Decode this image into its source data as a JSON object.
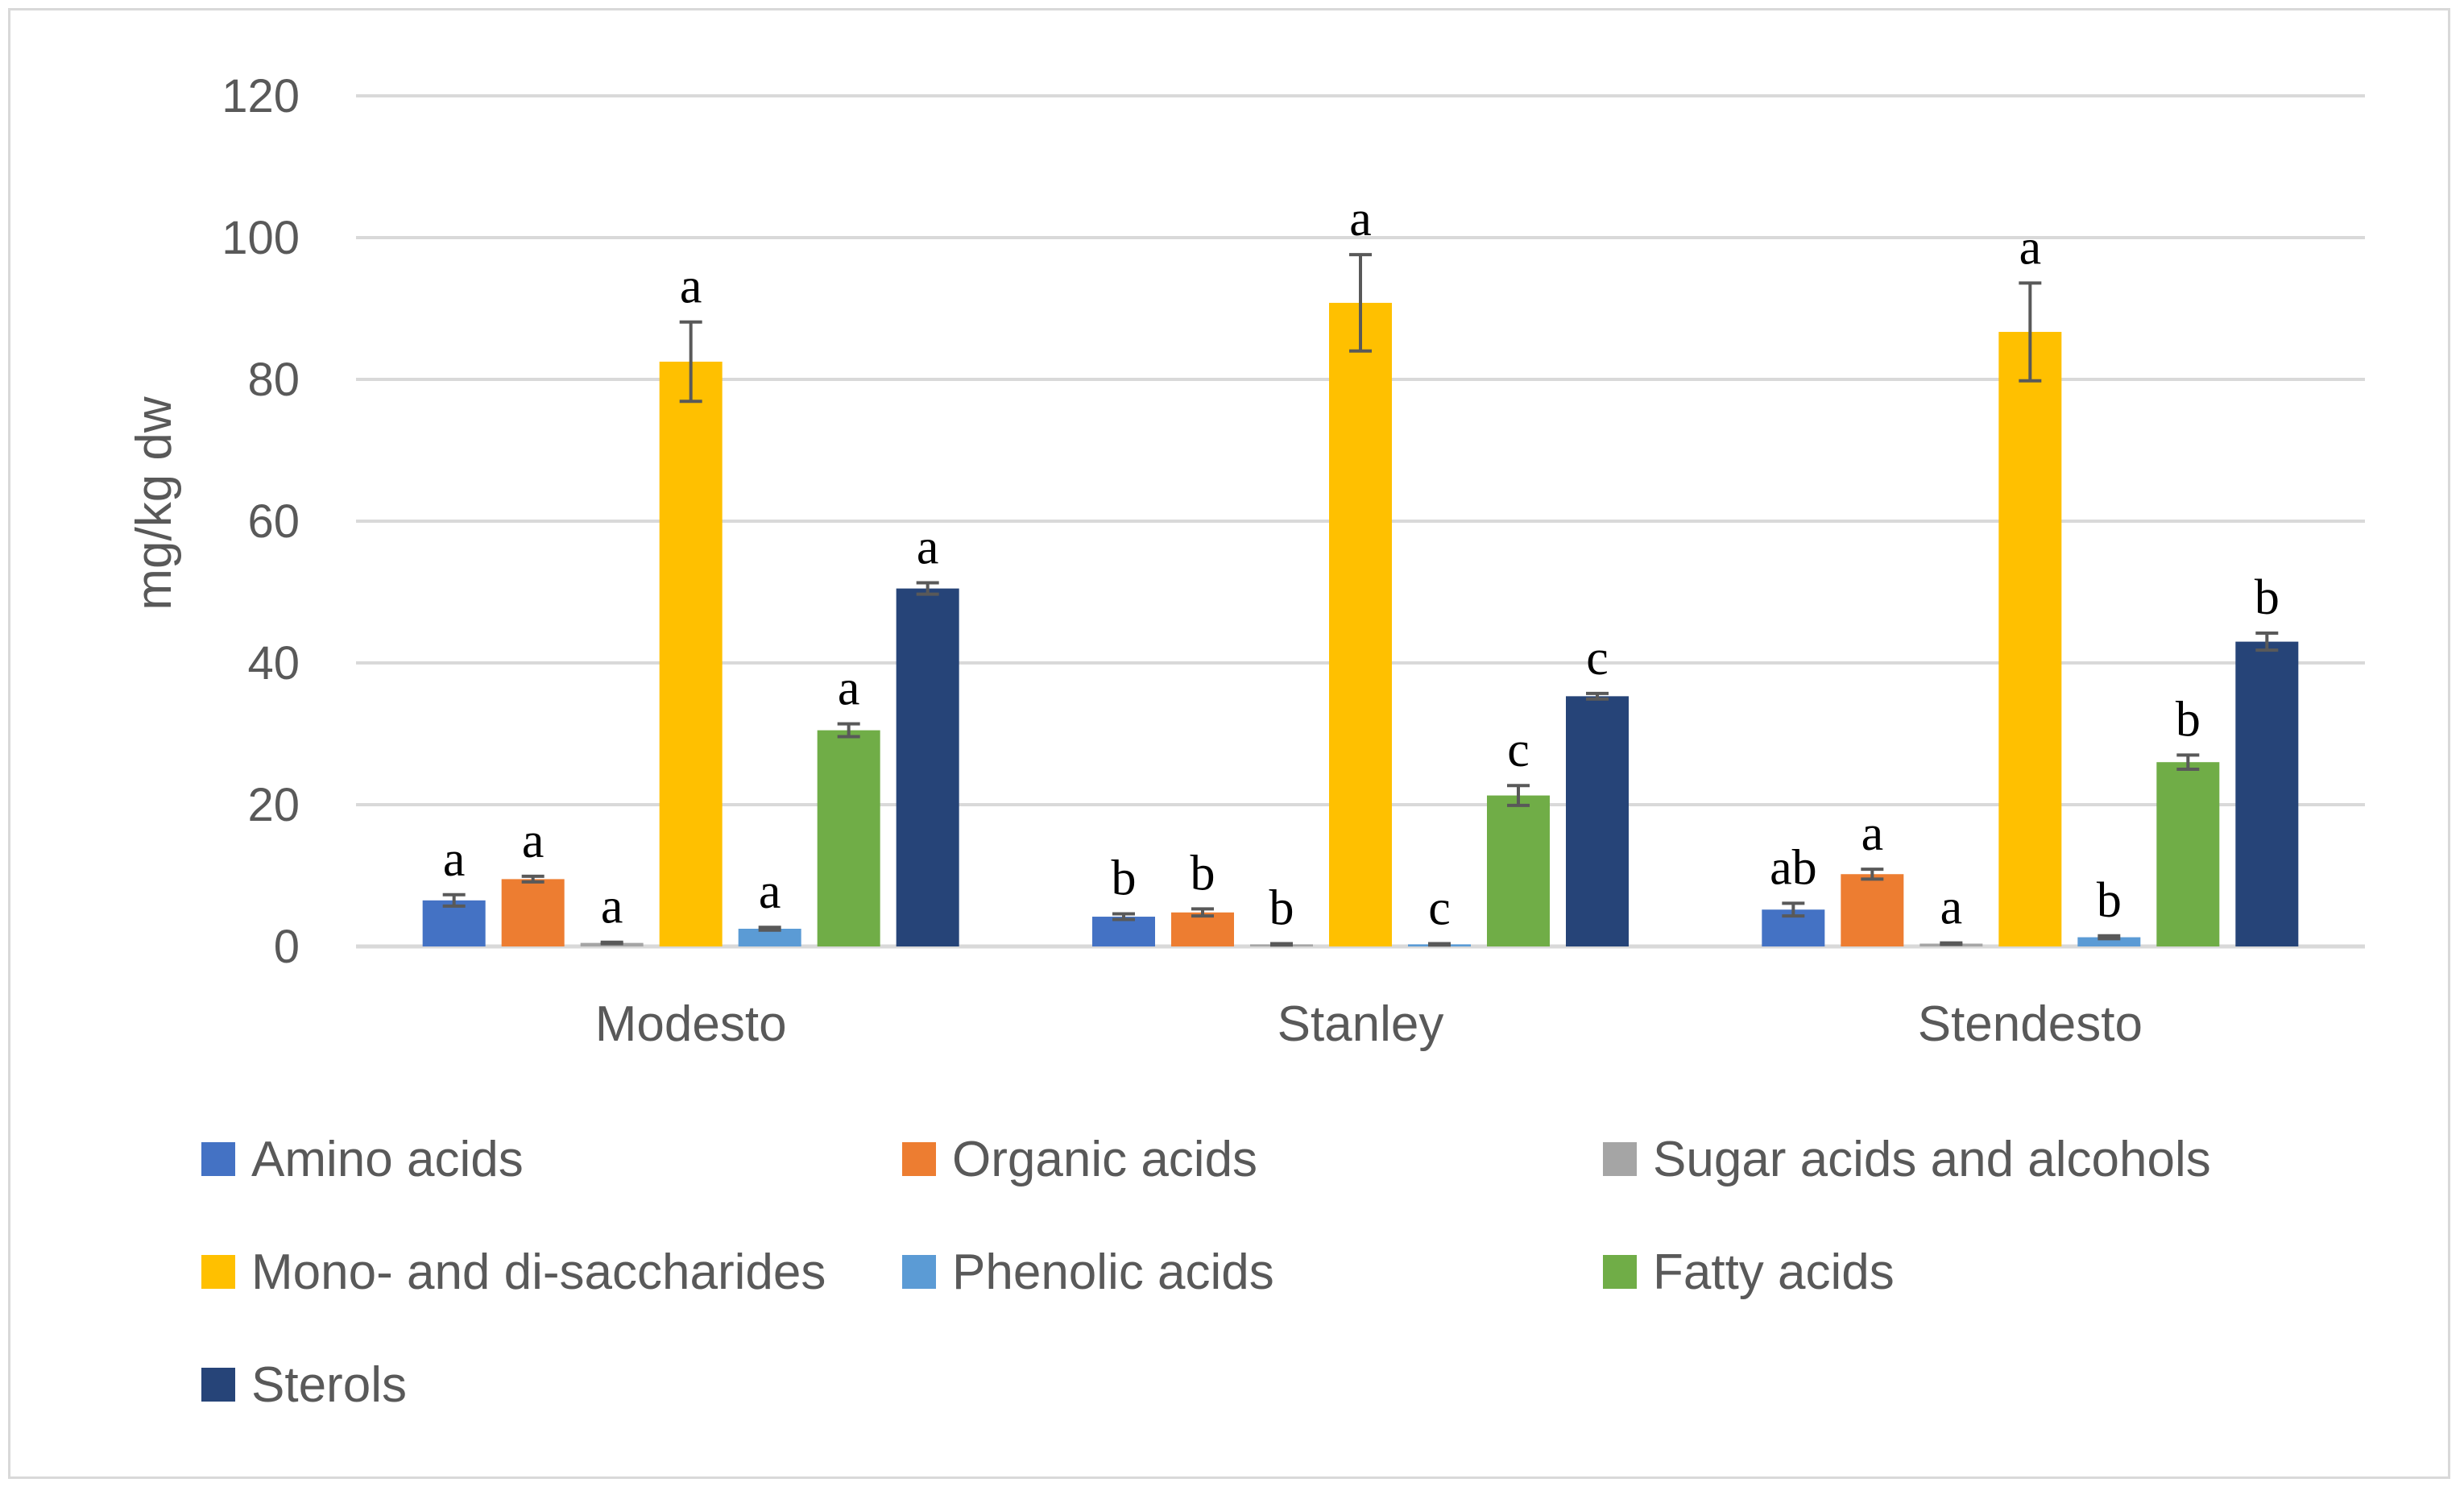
{
  "chart_data": {
    "type": "bar",
    "title": "",
    "xlabel": "",
    "ylabel": "mg/kg dw",
    "ylim": [
      0,
      120
    ],
    "yticks": [
      "0",
      "20",
      "40",
      "60",
      "80",
      "100",
      "120"
    ],
    "grid": true,
    "legend_position": "bottom",
    "categories": [
      "Modesto",
      "Stanley",
      "Stendesto"
    ],
    "series": [
      {
        "name": "Amino acids",
        "color": "#4472c4",
        "values": [
          6.5,
          4.2,
          5.2
        ],
        "errors": [
          0.8,
          0.4,
          0.9
        ],
        "labels": [
          "a",
          "b",
          "ab"
        ]
      },
      {
        "name": "Organic acids",
        "color": "#ed7d31",
        "values": [
          9.5,
          4.8,
          10.2
        ],
        "errors": [
          0.4,
          0.5,
          0.7
        ],
        "labels": [
          "a",
          "b",
          "a"
        ]
      },
      {
        "name": "Sugar acids and alcohols",
        "color": "#a5a5a5",
        "values": [
          0.5,
          0.3,
          0.4
        ],
        "errors": [
          0.1,
          0.1,
          0.1
        ],
        "labels": [
          "a",
          "b",
          "a"
        ]
      },
      {
        "name": "Mono- and di-saccharides",
        "color": "#ffc000",
        "values": [
          82.5,
          90.8,
          86.7
        ],
        "errors": [
          5.6,
          6.8,
          6.9
        ],
        "labels": [
          "a",
          "a",
          "a"
        ]
      },
      {
        "name": "Phenolic acids",
        "color": "#5b9bd5",
        "values": [
          2.5,
          0.3,
          1.3
        ],
        "errors": [
          0.2,
          0.1,
          0.2
        ],
        "labels": [
          "a",
          "c",
          "b"
        ]
      },
      {
        "name": "Fatty acids",
        "color": "#70ad47",
        "values": [
          30.5,
          21.3,
          26.0
        ],
        "errors": [
          0.9,
          1.4,
          1.0
        ],
        "labels": [
          "a",
          "c",
          "b"
        ]
      },
      {
        "name": "Sterols",
        "color": "#264478",
        "values": [
          50.5,
          35.3,
          43.0
        ],
        "errors": [
          0.8,
          0.4,
          1.2
        ],
        "labels": [
          "a",
          "c",
          "b"
        ]
      }
    ]
  }
}
